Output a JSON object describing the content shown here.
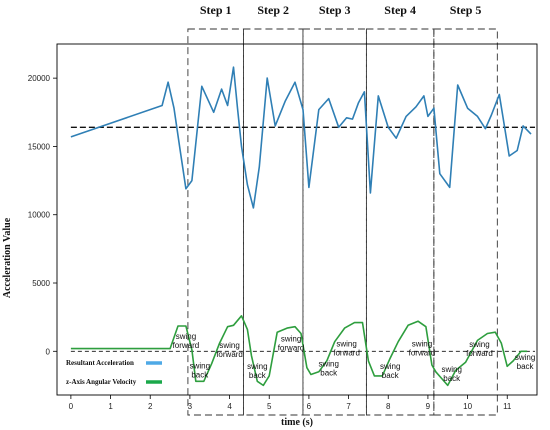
{
  "chart_data": {
    "type": "line",
    "xlabel": "time (s)",
    "ylabel": "Acceleration Value",
    "xlim": [
      -0.35,
      11.75
    ],
    "ylim": [
      -3200,
      22500
    ],
    "x_ticks": [
      0,
      1,
      2,
      3,
      4,
      5,
      6,
      7,
      8,
      9,
      10,
      11
    ],
    "y_ticks": [
      0,
      5000,
      10000,
      15000,
      20000
    ],
    "grid": false,
    "legend_position": "bottom-left",
    "reference_lines": [
      {
        "y": 16400,
        "style": "dashed"
      },
      {
        "y": 0,
        "style": "dashed"
      }
    ],
    "steps": [
      {
        "label": "Step 1",
        "x_start": 2.95,
        "x_end": 4.35
      },
      {
        "label": "Step 2",
        "x_start": 4.35,
        "x_end": 5.85
      },
      {
        "label": "Step 3",
        "x_start": 5.85,
        "x_end": 7.45
      },
      {
        "label": "Step 4",
        "x_start": 7.45,
        "x_end": 9.15
      },
      {
        "label": "Step 5",
        "x_start": 9.15,
        "x_end": 10.75
      }
    ],
    "annotations": [
      {
        "text": "swing\nforward",
        "x": 2.9,
        "y": 900
      },
      {
        "text": "swing\nback",
        "x": 3.25,
        "y": -1250
      },
      {
        "text": "swing\nforward",
        "x": 4.0,
        "y": 250
      },
      {
        "text": "swing\nback",
        "x": 4.7,
        "y": -1300
      },
      {
        "text": "swing\nforward",
        "x": 5.55,
        "y": 700
      },
      {
        "text": "swing\nforward",
        "x": 6.95,
        "y": 350
      },
      {
        "text": "swing\nback",
        "x": 6.5,
        "y": -1100
      },
      {
        "text": "swing\nforward",
        "x": 8.85,
        "y": 350
      },
      {
        "text": "swing\nback",
        "x": 8.05,
        "y": -1300
      },
      {
        "text": "swing\nforward",
        "x": 10.3,
        "y": 300
      },
      {
        "text": "swing\nback",
        "x": 9.6,
        "y": -1500
      },
      {
        "text": "swing\nback",
        "x": 11.45,
        "y": -650
      }
    ],
    "series": [
      {
        "name": "Resultant Acceleration",
        "color": "#2f7fb5",
        "legend_color": "#4ea9e6",
        "x": [
          0,
          2.3,
          2.45,
          2.6,
          2.75,
          2.9,
          3.05,
          3.3,
          3.6,
          3.8,
          3.95,
          4.1,
          4.2,
          4.3,
          4.45,
          4.6,
          4.75,
          4.95,
          5.15,
          5.4,
          5.65,
          5.85,
          6.0,
          6.25,
          6.5,
          6.75,
          6.95,
          7.1,
          7.25,
          7.4,
          7.55,
          7.75,
          8.0,
          8.2,
          8.45,
          8.7,
          8.9,
          9.0,
          9.15,
          9.3,
          9.55,
          9.75,
          10.0,
          10.25,
          10.45,
          10.6,
          10.8,
          10.9,
          11.05,
          11.25,
          11.4,
          11.6
        ],
        "values": [
          15700,
          18000,
          19700,
          17800,
          14800,
          11900,
          12500,
          19400,
          17500,
          19200,
          18000,
          20800,
          17800,
          15000,
          12200,
          10500,
          13500,
          20000,
          16500,
          18300,
          19700,
          17700,
          12000,
          17700,
          18500,
          16400,
          17100,
          17000,
          18200,
          19000,
          11600,
          18700,
          16400,
          15600,
          17200,
          17900,
          18700,
          17200,
          17800,
          13000,
          12000,
          19500,
          17800,
          17200,
          16300,
          17300,
          18800,
          17000,
          14300,
          14700,
          16500,
          15900
        ]
      },
      {
        "name": "z-Axis Angular Velocity",
        "color": "#2e9e3e",
        "legend_color": "#1aa84a",
        "x": [
          0,
          2.5,
          2.7,
          2.9,
          3.05,
          3.15,
          3.35,
          3.55,
          3.75,
          3.95,
          4.1,
          4.3,
          4.45,
          4.55,
          4.7,
          4.85,
          5.0,
          5.2,
          5.45,
          5.65,
          5.8,
          5.95,
          6.05,
          6.25,
          6.45,
          6.65,
          6.9,
          7.15,
          7.35,
          7.5,
          7.65,
          7.85,
          8.05,
          8.25,
          8.5,
          8.75,
          8.95,
          9.1,
          9.2,
          9.35,
          9.5,
          9.7,
          9.95,
          10.25,
          10.5,
          10.7,
          10.85,
          11.0,
          11.15,
          11.35,
          11.5
        ],
        "values": [
          200,
          200,
          1850,
          1850,
          100,
          -2200,
          -2200,
          -900,
          600,
          1800,
          1900,
          2600,
          1600,
          -300,
          -2200,
          -2500,
          -1800,
          1400,
          1700,
          1800,
          1300,
          -1200,
          -1700,
          -1500,
          -700,
          700,
          1700,
          2100,
          2100,
          -700,
          -1800,
          -1800,
          -500,
          700,
          1900,
          2200,
          1800,
          -1000,
          -1500,
          -2000,
          -2500,
          -1400,
          -800,
          800,
          1300,
          1400,
          600,
          -1100,
          -700,
          0,
          0
        ]
      }
    ]
  }
}
